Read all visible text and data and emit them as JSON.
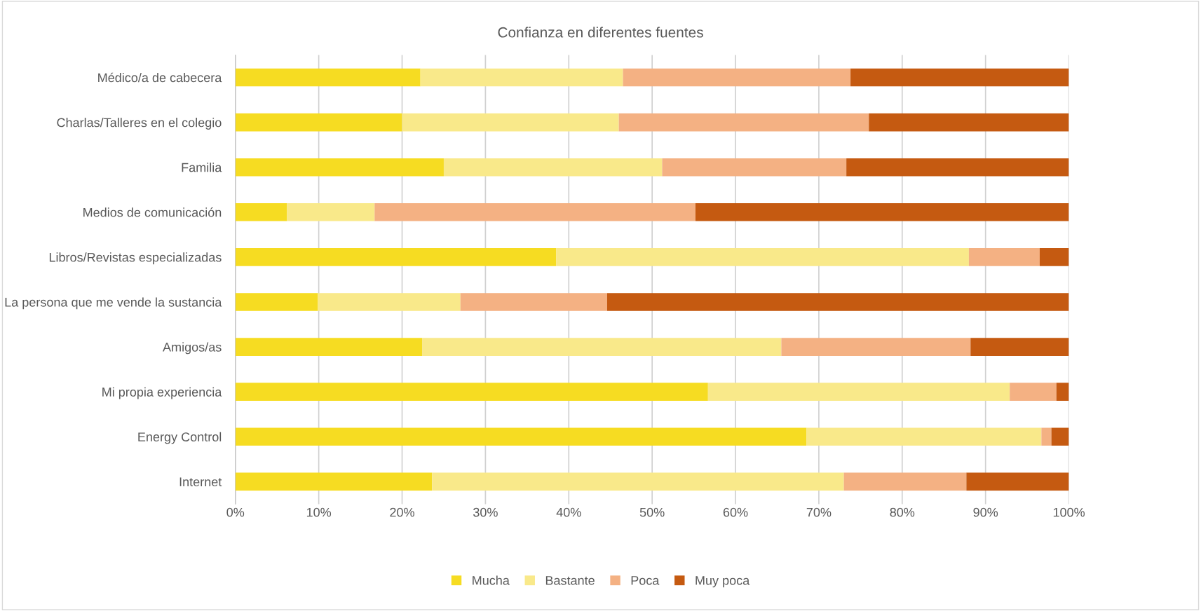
{
  "chart_data": {
    "type": "bar",
    "orientation": "horizontal",
    "stacked": true,
    "title": "Confianza en diferentes fuentes",
    "categories": [
      "Médico/a de cabecera",
      "Charlas/Talleres en el colegio",
      "Familia",
      "Medios de comunicación",
      "Libros/Revistas especializadas",
      "La persona que me vende la sustancia",
      "Amigos/as",
      "Mi propia experiencia",
      "Energy Control",
      "Internet"
    ],
    "series": [
      {
        "name": "Mucha",
        "color": "#f6dc22",
        "values": [
          22.2,
          20.0,
          25.0,
          6.2,
          38.5,
          9.9,
          22.4,
          56.7,
          68.5,
          23.6
        ]
      },
      {
        "name": "Bastante",
        "color": "#f9e98a",
        "values": [
          24.3,
          26.0,
          26.2,
          10.5,
          49.5,
          17.1,
          43.1,
          36.2,
          28.2,
          49.4
        ]
      },
      {
        "name": "Poca",
        "color": "#f4b183",
        "values": [
          27.3,
          30.0,
          22.1,
          38.5,
          8.5,
          17.6,
          22.7,
          5.6,
          1.2,
          14.7
        ]
      },
      {
        "name": "Muy poca",
        "color": "#c55a11",
        "values": [
          26.2,
          24.0,
          26.7,
          44.8,
          3.5,
          55.4,
          11.8,
          1.5,
          2.1,
          12.3
        ]
      }
    ],
    "xlim": [
      0,
      100
    ],
    "xticks": [
      {
        "value": 0,
        "label": "0%"
      },
      {
        "value": 10,
        "label": "10%"
      },
      {
        "value": 20,
        "label": "20%"
      },
      {
        "value": 30,
        "label": "30%"
      },
      {
        "value": 40,
        "label": "40%"
      },
      {
        "value": 50,
        "label": "50%"
      },
      {
        "value": 60,
        "label": "60%"
      },
      {
        "value": 70,
        "label": "70%"
      },
      {
        "value": 80,
        "label": "80%"
      },
      {
        "value": 90,
        "label": "90%"
      },
      {
        "value": 100,
        "label": "100%"
      }
    ],
    "grid": "x",
    "legend": "bottom"
  }
}
